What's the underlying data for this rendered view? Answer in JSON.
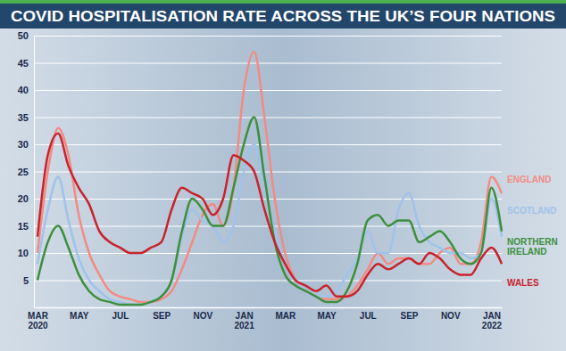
{
  "chart_data": {
    "type": "line",
    "title": "COVID HOSPITALISATION RATE ACROSS THE UK’S FOUR NATIONS",
    "categories": [
      "MAR 2020",
      null,
      null,
      null,
      "MAY",
      null,
      null,
      null,
      "JUL",
      null,
      null,
      null,
      "SEP",
      null,
      null,
      null,
      "NOV",
      null,
      null,
      null,
      "JAN 2021",
      null,
      null,
      null,
      "MAR",
      null,
      null,
      null,
      "MAY",
      null,
      null,
      null,
      "JUL",
      null,
      null,
      null,
      "SEP",
      null,
      null,
      null,
      "NOV",
      null,
      null,
      null,
      "JAN 2022",
      null
    ],
    "series": [
      {
        "name": "ENGLAND",
        "color": "#f28b82",
        "values": [
          10,
          25,
          33,
          28,
          17,
          10,
          6,
          3,
          2,
          1.5,
          1,
          1,
          1.5,
          3,
          7,
          12,
          17,
          19,
          15,
          22,
          40,
          47,
          35,
          20,
          10,
          5,
          3,
          2,
          1.5,
          1.5,
          2,
          4,
          7,
          10,
          8,
          9,
          9,
          8,
          8,
          10,
          11,
          8,
          8,
          12,
          24,
          21
        ]
      },
      {
        "name": "SCOTLAND",
        "color": "#9fc3ea",
        "values": [
          8,
          18,
          24,
          16,
          9,
          5,
          3,
          1.5,
          1,
          0.5,
          0.5,
          1,
          2,
          5,
          13,
          18,
          16,
          15,
          12,
          15,
          25,
          30,
          22,
          14,
          8,
          5,
          3,
          2,
          2,
          3,
          6,
          9,
          14,
          10,
          10,
          18,
          21,
          15,
          12,
          11,
          10,
          10,
          9,
          10,
          20,
          13
        ]
      },
      {
        "name": "NORTHERN IRELAND",
        "color": "#3d8f3d",
        "values": [
          5,
          12,
          15,
          11,
          6,
          3,
          1.5,
          1,
          0.5,
          0.5,
          0.5,
          1,
          2,
          5,
          14,
          20,
          18,
          15,
          15,
          22,
          30,
          35,
          24,
          12,
          6,
          4,
          3,
          2,
          1,
          1,
          3,
          8,
          16,
          17,
          15,
          16,
          16,
          12,
          13,
          14,
          12,
          9,
          8,
          10,
          22,
          14
        ]
      },
      {
        "name": "WALES",
        "color": "#c8232c",
        "values": [
          13,
          28,
          32,
          26,
          22,
          19,
          14,
          12,
          11,
          10,
          10,
          11,
          12,
          18,
          22,
          21,
          20,
          17,
          20,
          28,
          27,
          25,
          18,
          12,
          8,
          5,
          4,
          3,
          4,
          2,
          2,
          3,
          6,
          8,
          7,
          8,
          9,
          8,
          10,
          9,
          7,
          6,
          6,
          9,
          11,
          8
        ]
      }
    ],
    "ylim": [
      0,
      50
    ],
    "yticks": [
      5,
      10,
      15,
      20,
      25,
      30,
      35,
      40,
      45,
      50
    ],
    "grid": true,
    "legend": "right"
  }
}
